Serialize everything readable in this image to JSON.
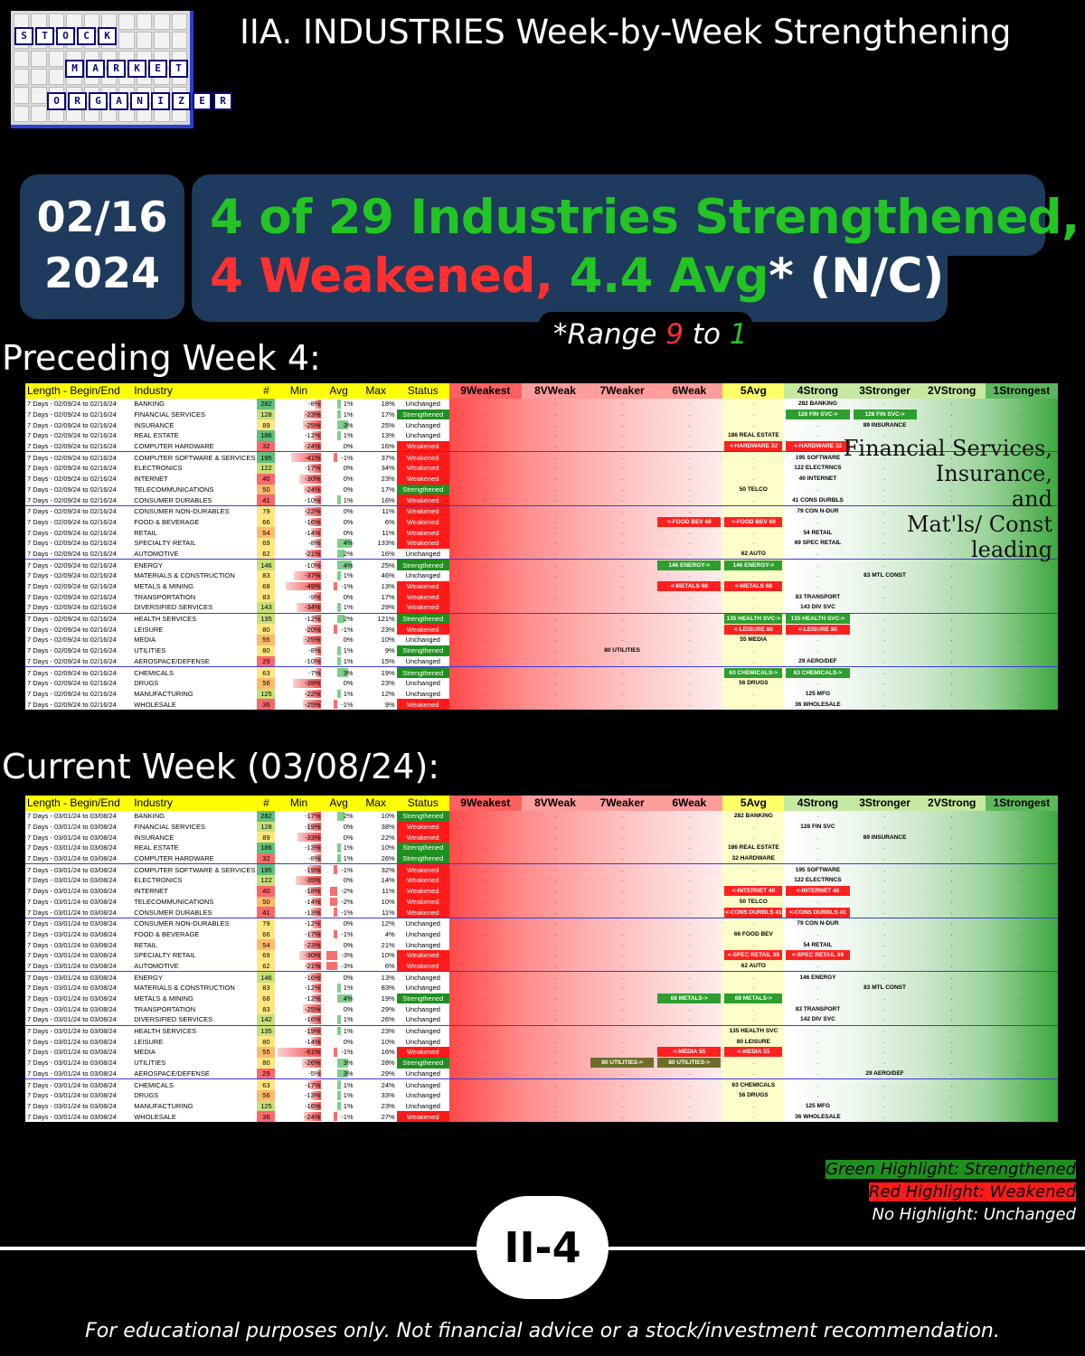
{
  "logo": {
    "words": [
      "STOCK",
      "MARKET",
      "ORGANIZER"
    ]
  },
  "title": "IIA. INDUSTRIES Week-by-Week Strengthening",
  "date": {
    "line1": "02/16",
    "line2": "2024"
  },
  "headline": {
    "line1": "4 of 29 Industries Strengthened,",
    "weakened": "4 Weakened,",
    "avg": " 4.4 Avg",
    "star": "* (N/C)"
  },
  "range": {
    "prefix": "*Range ",
    "high": "9",
    "mid": " to ",
    "low": "1"
  },
  "sections": {
    "preceding": "Preceding Week 4:",
    "current": "Current Week (03/08/24):"
  },
  "headers": [
    "Length - Begin/End",
    "Industry",
    "#",
    "Min",
    "Avg",
    "Max",
    "Status",
    "9Weakest",
    "8VWeak",
    "7Weaker",
    "6Weak",
    "5Avg",
    "4Strong",
    "3Stronger",
    "2VStrong",
    "1Strongest"
  ],
  "note": [
    "Financial Services,",
    "Insurance,",
    "and",
    "Mat'ls/ Const",
    "leading"
  ],
  "legend": {
    "green": "Green Highlight: Strengthened",
    "red": "Red Highlight: Weakened",
    "none": "No Highlight: Unchanged"
  },
  "badge": "II-4",
  "footer": "For educational purposes only. Not financial advice or a stock/investment recommendation.",
  "colors": {
    "navy": "#1e3a5c",
    "green": "#23c423",
    "red": "#ff3030",
    "yellow": "#ffff00"
  },
  "tables": {
    "preceding": {
      "period": "7 Days - 02/09/24 to 02/16/24",
      "rows": [
        {
          "ind": "BANKING",
          "n": "282",
          "min": "-8%",
          "avg": "1%",
          "max": "18%",
          "st": "Unchanged",
          "z": {
            "4": "282 BANKING"
          }
        },
        {
          "ind": "FINANCIAL SERVICES",
          "n": "128",
          "min": "-23%",
          "avg": "1%",
          "max": "17%",
          "st": "Strengthened",
          "z": {
            "4": "128 FIN SVC->",
            "3": "128 FIN SVC->"
          },
          "zs": "g"
        },
        {
          "ind": "INSURANCE",
          "n": "89",
          "min": "-25%",
          "avg": "3%",
          "max": "25%",
          "st": "Unchanged",
          "z": {
            "3": "89 INSURANCE"
          }
        },
        {
          "ind": "REAL ESTATE",
          "n": "186",
          "min": "-12%",
          "avg": "1%",
          "max": "13%",
          "st": "Unchanged",
          "z": {
            "5": "186 REAL ESTATE"
          }
        },
        {
          "ind": "COMPUTER HARDWARE",
          "n": "32",
          "min": "-24%",
          "avg": "0%",
          "max": "16%",
          "st": "Weakened",
          "z": {
            "5": "<-HARDWARE 32",
            "4": "<-HARDWARE 32"
          },
          "zs": "r"
        },
        {
          "ind": "COMPUTER SOFTWARE & SERVICES",
          "n": "195",
          "min": "-41%",
          "avg": "-1%",
          "max": "37%",
          "st": "Weakened",
          "z": {
            "4": "195 SOFTWARE"
          }
        },
        {
          "ind": "ELECTRONICS",
          "n": "122",
          "min": "-17%",
          "avg": "0%",
          "max": "34%",
          "st": "Weakened",
          "z": {
            "4": "122 ELECTRNCS"
          }
        },
        {
          "ind": "INTERNET",
          "n": "40",
          "min": "-30%",
          "avg": "0%",
          "max": "23%",
          "st": "Weakened",
          "z": {
            "4": "40 INTERNET"
          }
        },
        {
          "ind": "TELECOMMUNICATIONS",
          "n": "50",
          "min": "-24%",
          "avg": "0%",
          "max": "17%",
          "st": "Strengthened",
          "z": {
            "5": "50 TELCO"
          }
        },
        {
          "ind": "CONSUMER DURABLES",
          "n": "41",
          "min": "-10%",
          "avg": "1%",
          "max": "16%",
          "st": "Weakened",
          "z": {
            "4": "41 CONS DURBLS"
          }
        },
        {
          "ind": "CONSUMER NON-DURABLES",
          "n": "79",
          "min": "-22%",
          "avg": "0%",
          "max": "11%",
          "st": "Weakened",
          "z": {
            "4": "79 CON N-DUR"
          }
        },
        {
          "ind": "FOOD & BEVERAGE",
          "n": "66",
          "min": "-16%",
          "avg": "0%",
          "max": "6%",
          "st": "Weakened",
          "z": {
            "6": "<-FOOD BEV 66",
            "5": "<-FOOD BEV 66"
          },
          "zs": "r"
        },
        {
          "ind": "RETAIL",
          "n": "54",
          "min": "-14%",
          "avg": "0%",
          "max": "11%",
          "st": "Weakened",
          "z": {
            "4": "54 RETAIL"
          }
        },
        {
          "ind": "SPECIALTY RETAIL",
          "n": "69",
          "min": "-8%",
          "avg": "4%",
          "max": "133%",
          "st": "Weakened",
          "z": {
            "4": "69 SPEC RETAIL"
          }
        },
        {
          "ind": "AUTOMOTIVE",
          "n": "62",
          "min": "-21%",
          "avg": "2%",
          "max": "16%",
          "st": "Unchanged",
          "z": {
            "5": "62 AUTO"
          }
        },
        {
          "ind": "ENERGY",
          "n": "146",
          "min": "-10%",
          "avg": "4%",
          "max": "25%",
          "st": "Strengthened",
          "z": {
            "6": "146 ENERGY->",
            "5": "146 ENERGY->"
          },
          "zs": "g"
        },
        {
          "ind": "MATERIALS & CONSTRUCTION",
          "n": "83",
          "min": "-37%",
          "avg": "1%",
          "max": "46%",
          "st": "Unchanged",
          "z": {
            "3": "83 MTL CONST"
          }
        },
        {
          "ind": "METALS & MINING",
          "n": "68",
          "min": "-49%",
          "avg": "-1%",
          "max": "13%",
          "st": "Weakened",
          "z": {
            "6": "<-METALS 68",
            "5": "<-METALS 68"
          },
          "zs": "r"
        },
        {
          "ind": "TRANSPORTATION",
          "n": "83",
          "min": "-9%",
          "avg": "0%",
          "max": "17%",
          "st": "Weakened",
          "z": {
            "4": "83 TRANSPORT"
          }
        },
        {
          "ind": "DIVERSIFIED SERVICES",
          "n": "143",
          "min": "-34%",
          "avg": "1%",
          "max": "29%",
          "st": "Weakened",
          "z": {
            "4": "143 DIV SVC"
          }
        },
        {
          "ind": "HEALTH SERVICES",
          "n": "135",
          "min": "-12%",
          "avg": "2%",
          "max": "121%",
          "st": "Strengthened",
          "z": {
            "5": "135 HEALTH SVC->",
            "4": "135 HEALTH SVC->"
          },
          "zs": "g"
        },
        {
          "ind": "LEISURE",
          "n": "80",
          "min": "-20%",
          "avg": "-1%",
          "max": "23%",
          "st": "Weakened",
          "z": {
            "5": "<-LEISURE 80",
            "4": "<-LEISURE 80"
          },
          "zs": "r"
        },
        {
          "ind": "MEDIA",
          "n": "55",
          "min": "-25%",
          "avg": "0%",
          "max": "10%",
          "st": "Unchanged",
          "z": {
            "5": "55 MEDIA"
          }
        },
        {
          "ind": "UTILITIES",
          "n": "80",
          "min": "-8%",
          "avg": "1%",
          "max": "9%",
          "st": "Strengthened",
          "z": {
            "7": "80 UTILITIES"
          }
        },
        {
          "ind": "AEROSPACE/DEFENSE",
          "n": "29",
          "min": "-10%",
          "avg": "1%",
          "max": "15%",
          "st": "Unchanged",
          "z": {
            "4": "29 AERO/DEF"
          }
        },
        {
          "ind": "CHEMICALS",
          "n": "63",
          "min": "-7%",
          "avg": "3%",
          "max": "19%",
          "st": "Strengthened",
          "z": {
            "5": "63 CHEMICALS->",
            "4": "63 CHEMICALS->"
          },
          "zs": "g"
        },
        {
          "ind": "DRUGS",
          "n": "56",
          "min": "-39%",
          "avg": "0%",
          "max": "23%",
          "st": "Unchanged",
          "z": {
            "5": "56 DRUGS"
          }
        },
        {
          "ind": "MANUFACTURING",
          "n": "125",
          "min": "-22%",
          "avg": "1%",
          "max": "12%",
          "st": "Unchanged",
          "z": {
            "4": "125 MFG"
          }
        },
        {
          "ind": "WHOLESALE",
          "n": "36",
          "min": "-25%",
          "avg": "-1%",
          "max": "9%",
          "st": "Weakened",
          "z": {
            "4": "36 WHOLESALE"
          }
        }
      ]
    },
    "current": {
      "period": "7 Days - 03/01/24 to 03/08/24",
      "rows": [
        {
          "ind": "BANKING",
          "n": "282",
          "min": "-17%",
          "avg": "2%",
          "max": "10%",
          "st": "Strengthened",
          "z": {
            "5": "282 BANKING"
          }
        },
        {
          "ind": "FINANCIAL SERVICES",
          "n": "128",
          "min": "-19%",
          "avg": "0%",
          "max": "38%",
          "st": "Weakened",
          "z": {
            "4": "128 FIN SVC"
          }
        },
        {
          "ind": "INSURANCE",
          "n": "89",
          "min": "-33%",
          "avg": "0%",
          "max": "22%",
          "st": "Weakened",
          "z": {
            "3": "89 INSURANCE"
          }
        },
        {
          "ind": "REAL ESTATE",
          "n": "186",
          "min": "-13%",
          "avg": "1%",
          "max": "10%",
          "st": "Strengthened",
          "z": {
            "5": "186 REAL ESTATE"
          }
        },
        {
          "ind": "COMPUTER HARDWARE",
          "n": "32",
          "min": "-8%",
          "avg": "1%",
          "max": "26%",
          "st": "Strengthened",
          "z": {
            "5": "32 HARDWARE"
          }
        },
        {
          "ind": "COMPUTER SOFTWARE & SERVICES",
          "n": "195",
          "min": "-19%",
          "avg": "-1%",
          "max": "32%",
          "st": "Weakened",
          "z": {
            "4": "195 SOFTWARE"
          }
        },
        {
          "ind": "ELECTRONICS",
          "n": "122",
          "min": "-35%",
          "avg": "0%",
          "max": "14%",
          "st": "Weakened",
          "z": {
            "4": "122 ELECTRNCS"
          }
        },
        {
          "ind": "INTERNET",
          "n": "40",
          "min": "-18%",
          "avg": "-2%",
          "max": "11%",
          "st": "Weakened",
          "z": {
            "5": "<-INTERNET 40",
            "4": "<-INTERNET 40"
          },
          "zs": "r"
        },
        {
          "ind": "TELECOMMUNICATIONS",
          "n": "50",
          "min": "-14%",
          "avg": "-2%",
          "max": "10%",
          "st": "Weakened",
          "z": {
            "5": "50 TELCO"
          }
        },
        {
          "ind": "CONSUMER DURABLES",
          "n": "41",
          "min": "-13%",
          "avg": "-1%",
          "max": "11%",
          "st": "Weakened",
          "z": {
            "5": "<-CONS DURBLS 41",
            "4": "<-CONS DURBLS 41"
          },
          "zs": "r"
        },
        {
          "ind": "CONSUMER NON-DURABLES",
          "n": "79",
          "min": "-12%",
          "avg": "0%",
          "max": "12%",
          "st": "Unchanged",
          "z": {
            "4": "79 CON N-DUR"
          }
        },
        {
          "ind": "FOOD & BEVERAGE",
          "n": "66",
          "min": "-17%",
          "avg": "-1%",
          "max": "4%",
          "st": "Unchanged",
          "z": {
            "5": "66 FOOD BEV"
          }
        },
        {
          "ind": "RETAIL",
          "n": "54",
          "min": "-23%",
          "avg": "0%",
          "max": "21%",
          "st": "Unchanged",
          "z": {
            "4": "54 RETAIL"
          }
        },
        {
          "ind": "SPECIALTY RETAIL",
          "n": "69",
          "min": "-30%",
          "avg": "-3%",
          "max": "10%",
          "st": "Weakened",
          "z": {
            "5": "<-SPEC RETAIL 69",
            "4": "<-SPEC RETAIL 69"
          },
          "zs": "r"
        },
        {
          "ind": "AUTOMOTIVE",
          "n": "62",
          "min": "-21%",
          "avg": "-3%",
          "max": "6%",
          "st": "Weakened",
          "z": {
            "5": "62 AUTO"
          }
        },
        {
          "ind": "ENERGY",
          "n": "146",
          "min": "-16%",
          "avg": "0%",
          "max": "13%",
          "st": "Unchanged",
          "z": {
            "4": "146 ENERGY"
          }
        },
        {
          "ind": "MATERIALS & CONSTRUCTION",
          "n": "83",
          "min": "-12%",
          "avg": "1%",
          "max": "83%",
          "st": "Unchanged",
          "z": {
            "3": "83 MTL CONST"
          }
        },
        {
          "ind": "METALS & MINING",
          "n": "68",
          "min": "-12%",
          "avg": "4%",
          "max": "19%",
          "st": "Strengthened",
          "z": {
            "6": "68 METALS->",
            "5": "68 METALS->"
          },
          "zs": "g"
        },
        {
          "ind": "TRANSPORTATION",
          "n": "83",
          "min": "-25%",
          "avg": "0%",
          "max": "29%",
          "st": "Unchanged",
          "z": {
            "4": "83 TRANSPORT"
          }
        },
        {
          "ind": "DIVERSIFIED SERVICES",
          "n": "142",
          "min": "-16%",
          "avg": "1%",
          "max": "26%",
          "st": "Unchanged",
          "z": {
            "4": "142 DIV SVC"
          }
        },
        {
          "ind": "HEALTH SERVICES",
          "n": "135",
          "min": "-19%",
          "avg": "1%",
          "max": "23%",
          "st": "Unchanged",
          "z": {
            "5": "135 HEALTH SVC"
          }
        },
        {
          "ind": "LEISURE",
          "n": "80",
          "min": "-14%",
          "avg": "0%",
          "max": "10%",
          "st": "Unchanged",
          "z": {
            "5": "80 LEISURE"
          }
        },
        {
          "ind": "MEDIA",
          "n": "55",
          "min": "-61%",
          "avg": "-1%",
          "max": "16%",
          "st": "Weakened",
          "z": {
            "6": "<-MEDIA 55",
            "5": "<-MEDIA 55"
          },
          "zs": "r"
        },
        {
          "ind": "UTILITIES",
          "n": "80",
          "min": "-26%",
          "avg": "3%",
          "max": "28%",
          "st": "Strengthened",
          "z": {
            "7": "80 UTILITIES->",
            "6": "80 UTILITIES->"
          },
          "zs": "o"
        },
        {
          "ind": "AEROSPACE/DEFENSE",
          "n": "29",
          "min": "-5%",
          "avg": "3%",
          "max": "29%",
          "st": "Unchanged",
          "z": {
            "3": "29 AERO/DEF"
          }
        },
        {
          "ind": "CHEMICALS",
          "n": "63",
          "min": "-17%",
          "avg": "1%",
          "max": "24%",
          "st": "Unchanged",
          "z": {
            "5": "63 CHEMICALS"
          }
        },
        {
          "ind": "DRUGS",
          "n": "56",
          "min": "-13%",
          "avg": "1%",
          "max": "33%",
          "st": "Unchanged",
          "z": {
            "5": "56 DRUGS"
          }
        },
        {
          "ind": "MANUFACTURING",
          "n": "125",
          "min": "-16%",
          "avg": "1%",
          "max": "23%",
          "st": "Unchanged",
          "z": {
            "4": "125 MFG"
          }
        },
        {
          "ind": "WHOLESALE",
          "n": "36",
          "min": "-24%",
          "avg": "-1%",
          "max": "27%",
          "st": "Weakened",
          "z": {
            "4": "36 WHOLESALE"
          }
        }
      ]
    }
  }
}
